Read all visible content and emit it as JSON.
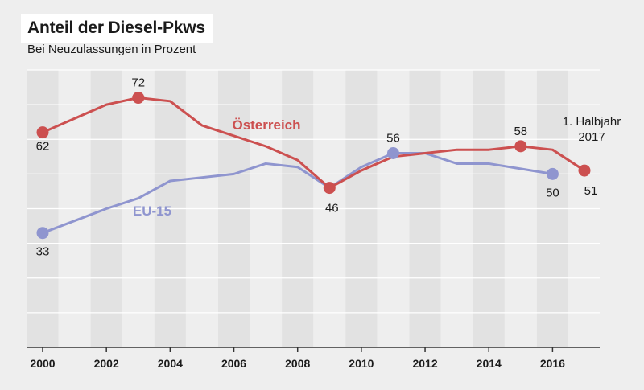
{
  "header": {
    "title": "Anteil der Diesel-Pkws",
    "subtitle": "Bei Neuzulassungen in Prozent"
  },
  "colors": {
    "oesterreich": "#cc5050",
    "eu15": "#8f95cf",
    "band": "#e2e2e2",
    "grid": "#ffffff",
    "axis": "#333333"
  },
  "chart_data": {
    "type": "line",
    "title": "Anteil der Diesel-Pkws",
    "subtitle": "Bei Neuzulassungen in Prozent",
    "xlim": [
      2000,
      2017
    ],
    "ylim": [
      0,
      80
    ],
    "x_ticks": [
      2000,
      2002,
      2004,
      2006,
      2008,
      2010,
      2012,
      2014,
      2016
    ],
    "grid": true,
    "series": [
      {
        "name": "Österreich",
        "x": [
          2000,
          2002,
          2003,
          2004,
          2005,
          2006,
          2007,
          2008,
          2009,
          2010,
          2011,
          2012,
          2013,
          2014,
          2015,
          2016,
          2017
        ],
        "values": [
          62,
          70,
          72,
          71,
          64,
          61,
          58,
          54,
          46,
          51,
          55,
          56,
          57,
          57,
          58,
          57,
          51
        ]
      },
      {
        "name": "EU-15",
        "x": [
          2000,
          2002,
          2003,
          2004,
          2005,
          2006,
          2007,
          2008,
          2009,
          2010,
          2011,
          2012,
          2013,
          2014,
          2015,
          2016
        ],
        "values": [
          33,
          40,
          43,
          48,
          49,
          50,
          53,
          52,
          46,
          52,
          56,
          56,
          53,
          53,
          51.5,
          50
        ]
      }
    ],
    "annotations": [
      {
        "series": "Österreich",
        "x": 2000,
        "value": 62,
        "text": "62"
      },
      {
        "series": "Österreich",
        "x": 2003,
        "value": 72,
        "text": "72"
      },
      {
        "series": "Österreich",
        "x": 2009,
        "value": 46,
        "text": "46"
      },
      {
        "series": "Österreich",
        "x": 2015,
        "value": 58,
        "text": "58"
      },
      {
        "series": "Österreich",
        "x": 2017,
        "value": 51,
        "text": "51"
      },
      {
        "series": "EU-15",
        "x": 2000,
        "value": 33,
        "text": "33"
      },
      {
        "series": "EU-15",
        "x": 2011,
        "value": 56,
        "text": "56"
      },
      {
        "series": "EU-15",
        "x": 2016,
        "value": 50,
        "text": "50"
      }
    ],
    "note_line1": "1. Halbjahr",
    "note_line2": "2017"
  }
}
